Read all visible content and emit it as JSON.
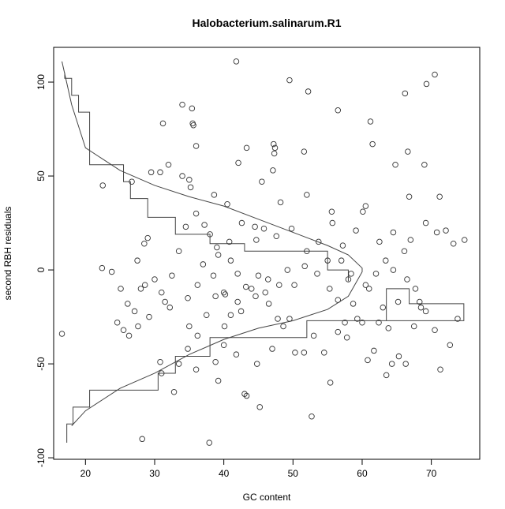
{
  "chart_data": {
    "type": "scatter",
    "title": "Halobacterium.salinarum.R1",
    "x_label": "GC content",
    "y_label": "second RBH residuals",
    "xlim": [
      15.4,
      77
    ],
    "ylim": [
      -100.8,
      118.5
    ],
    "xticks": [
      20,
      30,
      40,
      50,
      60,
      70
    ],
    "yticks": [
      -100,
      -50,
      0,
      50,
      100
    ],
    "color": "#333333",
    "x": [
      16.6,
      41.8,
      49.5,
      70.5,
      69.3,
      66.2,
      52.2,
      56.5,
      34,
      35.4,
      35.5,
      35.6,
      31.2,
      61.2,
      61.5,
      66.6,
      64.8,
      69,
      51.6,
      43.3,
      47.2,
      47.4,
      47.3,
      36,
      32,
      30.8,
      29.5,
      22.5,
      26.7,
      34,
      35,
      35.2,
      38.6,
      40.5,
      42.1,
      45.5,
      47.1,
      48.2,
      52,
      60.5,
      60.1,
      71.2,
      66.8,
      55.6,
      55.7,
      59.1,
      62.5,
      64.5,
      67,
      70.8,
      72.1,
      73.2,
      74.8,
      69.2,
      66.1,
      63.4,
      57,
      52,
      49.2,
      46.4,
      44,
      40,
      38.8,
      36.2,
      34.8,
      32.2,
      29.2,
      27.6,
      25.5,
      24.6,
      22.4,
      23.8,
      27.5,
      28,
      28.5,
      29,
      30,
      31,
      31.5,
      32.5,
      33.5,
      34.5,
      36,
      37.2,
      38,
      39.2,
      41,
      42,
      43.2,
      44.7,
      45.8,
      46.5,
      47.8,
      48.6,
      50.3,
      51.6,
      53,
      52.7,
      54.5,
      55.4,
      57.8,
      58.7,
      60,
      61.7,
      62.4,
      63.8,
      65.3,
      66.3,
      67.5,
      68.5,
      69.2,
      70.5,
      71.3,
      72.7,
      73.8,
      28.2,
      37.9,
      43,
      43.3,
      45.2,
      39.2,
      38.8,
      34.8,
      33.5,
      31,
      30.8,
      32.8,
      36,
      40,
      41.8,
      44.8,
      47,
      49.5,
      50.2,
      51.7,
      53.5,
      55.3,
      56.5,
      58,
      61,
      62,
      64.5,
      66.5,
      67.7,
      68.3,
      65.2,
      63,
      60.5,
      57.2,
      58.4,
      40.1,
      37.5,
      36.2,
      35,
      41,
      42.5,
      48,
      46,
      44.6,
      39,
      40.8,
      42.6,
      44.5,
      47.6,
      49.8,
      53.7,
      55,
      57.5,
      59.3,
      56.5,
      63.5,
      64.3,
      60.8,
      26.3,
      25.1,
      26.1,
      27.1,
      28.6,
      38.5,
      37,
      40.2,
      42,
      45
    ],
    "y": [
      -34,
      111,
      101,
      104,
      99,
      94,
      95,
      85,
      88,
      86,
      78,
      77,
      78,
      79,
      67,
      63,
      56,
      56,
      63,
      65,
      67,
      65,
      62,
      66,
      56,
      52,
      52,
      45,
      47,
      50,
      48,
      44,
      40,
      35,
      57,
      47,
      53,
      36,
      40,
      34,
      31,
      39,
      39,
      31,
      25,
      21,
      15,
      20,
      16,
      20,
      21,
      14,
      16,
      25,
      10,
      5,
      5,
      10,
      0,
      -5,
      -10,
      -12,
      -14,
      -8,
      -15,
      -20,
      -25,
      -30,
      -32,
      -28,
      1,
      -1,
      5,
      -10,
      14,
      17,
      -5,
      -12,
      -17,
      -3,
      10,
      23,
      30,
      24,
      19,
      8,
      5,
      -2,
      -9,
      16,
      22,
      -18,
      -26,
      -30,
      -44,
      -44,
      -35,
      -78,
      -44,
      -60,
      -36,
      -18,
      -28,
      -43,
      -28,
      -31,
      -46,
      -50,
      -30,
      -20,
      -22,
      -32,
      -53,
      -40,
      -26,
      -90,
      -92,
      -66,
      -67,
      -73,
      -59,
      -49,
      -42,
      -50,
      -55,
      -49,
      -65,
      -53,
      -40,
      -45,
      -50,
      -42,
      -26,
      -8,
      2,
      -2,
      -10,
      -16,
      -5,
      -10,
      -2,
      0,
      -5,
      -10,
      -17,
      -17,
      -20,
      -8,
      13,
      -2,
      -30,
      -24,
      -35,
      -30,
      -24,
      -22,
      -8,
      -12,
      -14,
      12,
      15,
      25,
      23,
      18,
      22,
      15,
      5,
      -28,
      -26,
      -33,
      -56,
      -50,
      -48,
      -35,
      -10,
      -18,
      -22,
      -8,
      -3,
      3,
      -13,
      -17,
      -3
    ],
    "lines": [
      {
        "x": [
          17,
          17,
          18,
          18,
          19,
          19,
          20.6,
          20.6,
          25.5,
          25.5,
          26.5,
          26.5,
          29,
          29,
          33,
          33,
          38,
          38,
          43,
          43,
          55,
          55,
          58,
          58
        ],
        "y": [
          105,
          102,
          102,
          93,
          93,
          84,
          84,
          56,
          56,
          47,
          47,
          38,
          38,
          28,
          28,
          19,
          19,
          14,
          14,
          10,
          10,
          0,
          0,
          -6
        ]
      },
      {
        "x": [
          17.3,
          17.3,
          18.2,
          18.2,
          20.6,
          20.6,
          30.5,
          30.5,
          33,
          33,
          38,
          38,
          43,
          52,
          52,
          63.5,
          63.5,
          66.8,
          66.8,
          74.7,
          74.7,
          52
        ],
        "y": [
          -92,
          -82,
          -82,
          -73,
          -73,
          -64,
          -64,
          -55,
          -55,
          -46,
          -46,
          -36,
          -36,
          -36,
          -27,
          -27,
          -10,
          -10,
          -18,
          -18,
          -27,
          -27
        ]
      },
      {
        "x": [
          16.6,
          18,
          20,
          25,
          30,
          35,
          40,
          45,
          50,
          55,
          58,
          60,
          60,
          58,
          55,
          50,
          45,
          40,
          35,
          30,
          25,
          20,
          18
        ],
        "y": [
          111,
          88,
          65,
          53,
          45,
          39,
          34,
          27,
          20,
          13,
          8,
          1,
          -1,
          -14,
          -21,
          -27,
          -31,
          -37,
          -45,
          -55,
          -63,
          -75,
          -83
        ]
      }
    ]
  }
}
